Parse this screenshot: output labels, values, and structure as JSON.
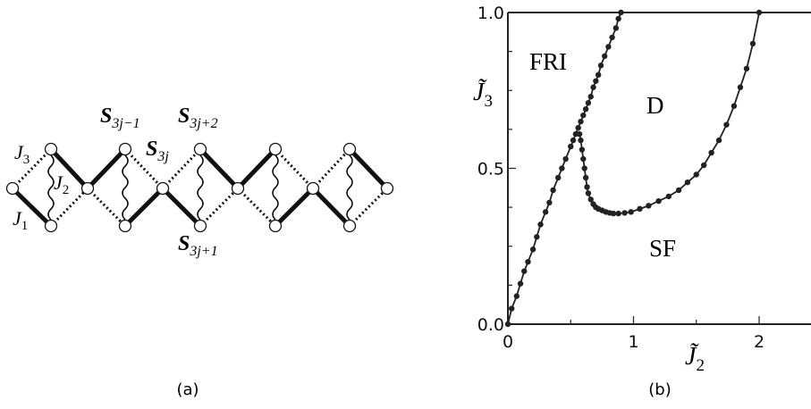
{
  "panel_a": {
    "caption": "(a)",
    "site_labels": {
      "s_3j_minus_1": {
        "base": "S",
        "sub": "3j−1"
      },
      "s_3j_plus_2": {
        "base": "S",
        "sub": "3j+2"
      },
      "s_3j": {
        "base": "S",
        "sub": "3j"
      },
      "s_3j_plus_1": {
        "base": "S",
        "sub": "3j+1"
      }
    },
    "coupling_labels": {
      "j3": {
        "base": "J",
        "sub": "3"
      },
      "j2": {
        "base": "J",
        "sub": "2"
      },
      "j1": {
        "base": "J",
        "sub": "1"
      }
    }
  },
  "panel_b": {
    "caption": "(b)",
    "region_labels": {
      "fri": "FRI",
      "d": "D",
      "sf": "SF"
    },
    "xlabel": {
      "base": "J̃",
      "sub": "2"
    },
    "ylabel": {
      "base": "J̃",
      "sub": "3"
    }
  },
  "chart_data": {
    "type": "scatter",
    "xlim": [
      0,
      2.5
    ],
    "ylim": [
      0,
      1.0
    ],
    "x_ticks": [
      "0",
      "1",
      "2"
    ],
    "y_ticks": [
      "0.0",
      "0.5",
      "1.0"
    ],
    "grid": false,
    "series": [
      {
        "x": [
          0,
          0.03,
          0.07,
          0.1,
          0.13,
          0.16,
          0.2,
          0.23,
          0.26,
          0.3,
          0.33,
          0.36,
          0.4,
          0.43,
          0.46,
          0.5,
          0.52,
          0.54,
          0.56,
          0.58,
          0.6,
          0.62,
          0.64,
          0.66,
          0.68,
          0.7,
          0.72,
          0.74,
          0.77,
          0.8,
          0.83,
          0.86,
          0.88,
          0.9
        ],
        "y": [
          0,
          0.05,
          0.09,
          0.13,
          0.17,
          0.2,
          0.24,
          0.28,
          0.32,
          0.36,
          0.39,
          0.43,
          0.47,
          0.5,
          0.53,
          0.57,
          0.59,
          0.61,
          0.63,
          0.65,
          0.67,
          0.69,
          0.71,
          0.73,
          0.76,
          0.78,
          0.8,
          0.83,
          0.86,
          0.89,
          0.92,
          0.95,
          0.98,
          1.0
        ]
      },
      {
        "x": [
          0.57,
          0.58,
          0.59,
          0.6,
          0.61,
          0.62,
          0.63,
          0.64,
          0.66,
          0.68,
          0.7,
          0.72,
          0.75,
          0.78,
          0.81,
          0.84,
          0.88,
          0.93,
          0.98,
          1.05,
          1.12,
          1.2,
          1.28,
          1.36,
          1.43,
          1.5,
          1.56,
          1.62,
          1.68,
          1.74,
          1.8,
          1.85,
          1.9,
          1.95,
          2.0
        ],
        "y": [
          0.61,
          0.59,
          0.56,
          0.53,
          0.5,
          0.47,
          0.44,
          0.42,
          0.4,
          0.385,
          0.375,
          0.37,
          0.365,
          0.36,
          0.357,
          0.355,
          0.355,
          0.357,
          0.36,
          0.37,
          0.38,
          0.395,
          0.41,
          0.43,
          0.455,
          0.48,
          0.51,
          0.55,
          0.59,
          0.64,
          0.7,
          0.76,
          0.82,
          0.9,
          1.0
        ]
      }
    ]
  }
}
